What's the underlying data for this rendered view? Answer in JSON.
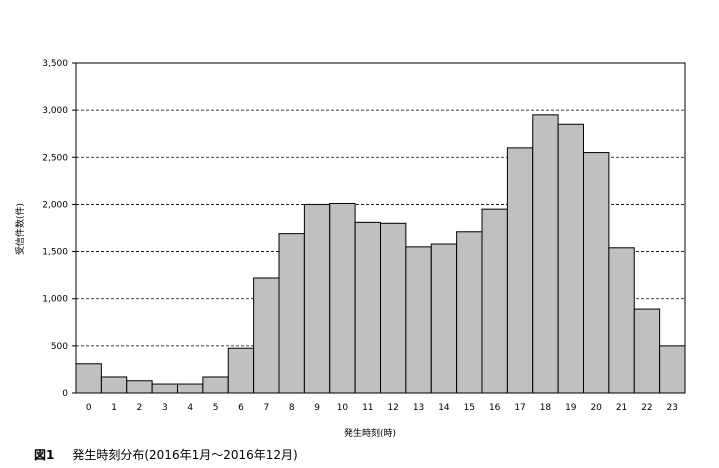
{
  "chart_data": {
    "type": "bar",
    "categories": [
      "0",
      "1",
      "2",
      "3",
      "4",
      "5",
      "6",
      "7",
      "8",
      "9",
      "10",
      "11",
      "12",
      "13",
      "14",
      "15",
      "16",
      "17",
      "18",
      "19",
      "20",
      "21",
      "22",
      "23"
    ],
    "values": [
      310,
      170,
      130,
      95,
      95,
      170,
      475,
      1220,
      1690,
      2000,
      2010,
      1810,
      1800,
      1550,
      1580,
      1710,
      1950,
      2600,
      2950,
      2850,
      2550,
      1540,
      890,
      500
    ],
    "xlabel": "発生時刻(時)",
    "ylabel": "受信件数(件)",
    "ylim": [
      0,
      3500
    ],
    "yticks": [
      0,
      500,
      1000,
      1500,
      2000,
      2500,
      3000,
      3500
    ],
    "ytick_labels": [
      "0",
      "500",
      "1,000",
      "1,500",
      "2,000",
      "2,500",
      "3,000",
      "3,500"
    ],
    "grid": "horizontal dashed",
    "bar_color": "#c0c0c0",
    "bar_edge_color": "#000000"
  },
  "caption": {
    "figure_label": "図1",
    "text": "発生時刻分布(2016年1月～2016年12月)"
  }
}
